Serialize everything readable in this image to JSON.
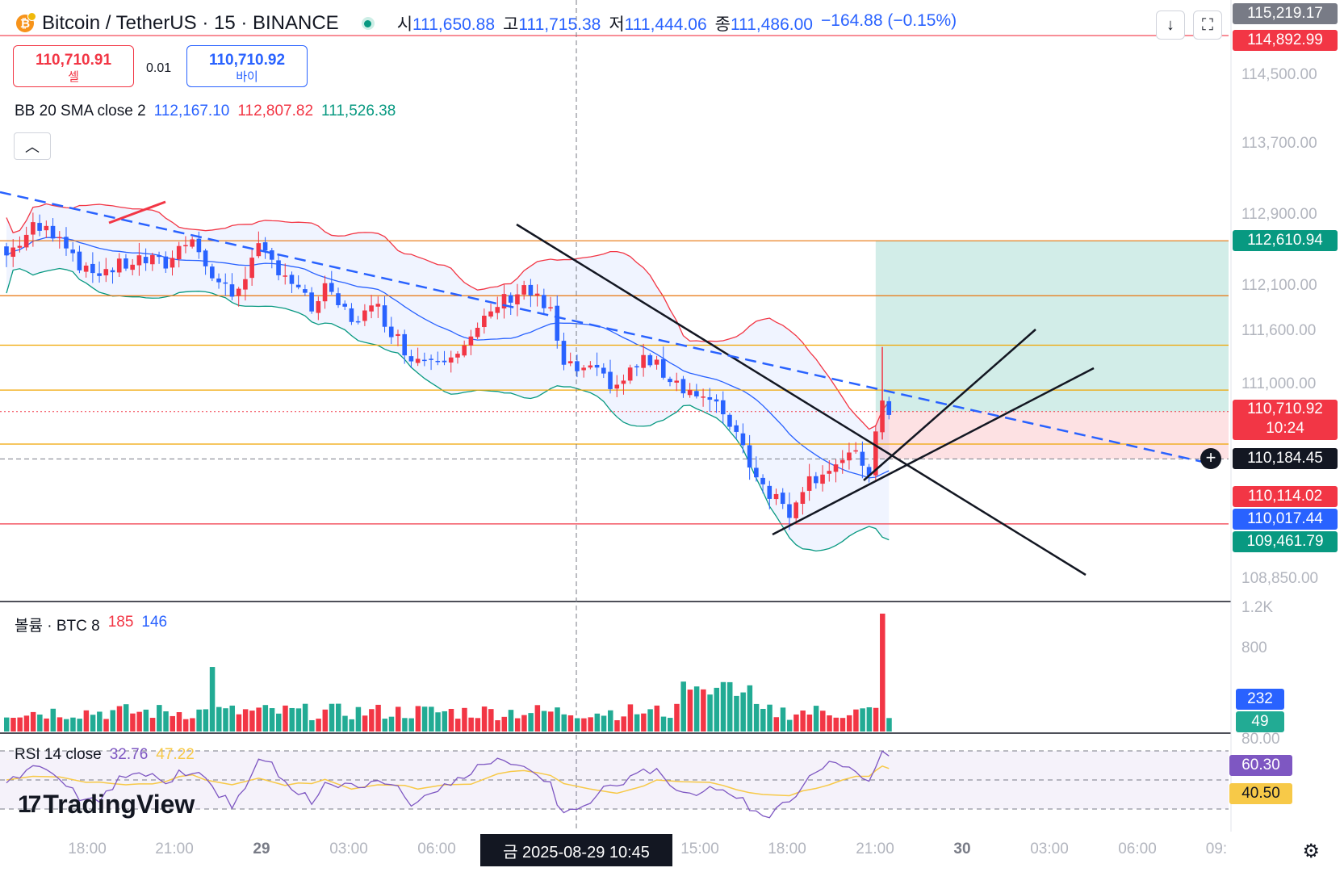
{
  "header": {
    "symbol": "Bitcoin / TetherUS · 15 · BINANCE",
    "ohlc": [
      {
        "k": "시",
        "v": "111,650.88"
      },
      {
        "k": "고",
        "v": "111,715.38"
      },
      {
        "k": "저",
        "v": "111,444.06"
      },
      {
        "k": "종",
        "v": "111,486.00"
      },
      {
        "k": "",
        "v": "−164.88 (−0.15%)"
      }
    ],
    "sell_price": "110,710.91",
    "sell_label": "셀",
    "buy_price": "110,710.92",
    "buy_label": "바이",
    "spread": "0.01"
  },
  "legends": {
    "bb": {
      "name": "BB 20 SMA close 2",
      "v1": "112,167.10",
      "v2": "112,807.82",
      "v3": "111,526.38"
    },
    "volume": {
      "name": "볼륨 · BTC 8",
      "v1": "185",
      "v2": "146"
    },
    "rsi": {
      "name": "RSI 14 close",
      "v1": "32.76",
      "v2": "47.22"
    }
  },
  "toolbar": {
    "download_icon": "download-icon",
    "fullscreen_icon": "fullscreen-icon",
    "collapse_icon": "chevron-up-icon"
  },
  "branding": {
    "text": "TradingView"
  },
  "crosshair_time": "금 2025-08-29   10:45",
  "price_axis_labels": [
    "115,219.17",
    "114,500.00",
    "113,700.00",
    "112,900.00",
    "112,100.00",
    "111,600.00",
    "111,000.00",
    "108,850.00"
  ],
  "price_tags": [
    {
      "text": "115,219.17",
      "color": "#787b86"
    },
    {
      "text": "114,892.99",
      "color": "#f23645"
    },
    {
      "text": "112,610.94",
      "color": "#089981"
    },
    {
      "text": "110,710.92\n10:24",
      "color": "#f23645"
    },
    {
      "text": "110,184.45",
      "color": "#131722"
    },
    {
      "text": "110,114.02",
      "color": "#f23645"
    },
    {
      "text": "110,017.44",
      "color": "#2962ff"
    },
    {
      "text": "109,461.79",
      "color": "#089981"
    }
  ],
  "volume_axis_labels": [
    "1.2K",
    "800"
  ],
  "volume_tags": [
    {
      "text": "232",
      "color": "#2962ff"
    },
    {
      "text": "49",
      "color": "#22ab94"
    }
  ],
  "rsi_axis_labels": [
    "80.00"
  ],
  "rsi_tags": [
    {
      "text": "60.30",
      "color": "#7e57c2"
    },
    {
      "text": "40.50",
      "color": "#f7c948"
    }
  ],
  "time_labels": [
    "18:00",
    "21:00",
    "29",
    "03:00",
    "06:00",
    "15:00",
    "18:00",
    "21:00",
    "30",
    "03:00",
    "06:00",
    "09:"
  ],
  "colors": {
    "up": "#089981",
    "down": "#f23645",
    "bb_basis": "#2962ff",
    "bb_upper": "#f23645",
    "bb_lower": "#089981",
    "rsi": "#7e57c2",
    "rsi_ma": "#f7c948"
  },
  "chart_data": {
    "type": "candlestick",
    "title": "Bitcoin / TetherUS · 15 · BINANCE",
    "interval": "15m",
    "price_range": [
      108700,
      115300
    ],
    "candle_count": 134,
    "close_path": [
      [
        0,
        112450
      ],
      [
        4,
        112750
      ],
      [
        8,
        112700
      ],
      [
        12,
        112250
      ],
      [
        16,
        112300
      ],
      [
        20,
        112400
      ],
      [
        24,
        112350
      ],
      [
        28,
        112700
      ],
      [
        30,
        112300
      ],
      [
        34,
        112000
      ],
      [
        38,
        112500
      ],
      [
        42,
        112250
      ],
      [
        46,
        111850
      ],
      [
        48,
        112050
      ],
      [
        52,
        111750
      ],
      [
        56,
        111850
      ],
      [
        60,
        111400
      ],
      [
        62,
        111300
      ],
      [
        66,
        111350
      ],
      [
        70,
        111500
      ],
      [
        74,
        111900
      ],
      [
        78,
        112100
      ],
      [
        82,
        111800
      ],
      [
        84,
        111200
      ],
      [
        88,
        111150
      ],
      [
        92,
        111000
      ],
      [
        96,
        111300
      ],
      [
        100,
        111100
      ],
      [
        104,
        110900
      ],
      [
        108,
        110700
      ],
      [
        110,
        110500
      ],
      [
        112,
        110150
      ],
      [
        114,
        109900
      ],
      [
        116,
        109750
      ],
      [
        118,
        109600
      ],
      [
        120,
        109900
      ],
      [
        124,
        110100
      ],
      [
        128,
        110200
      ],
      [
        130,
        110050
      ],
      [
        131,
        110450
      ],
      [
        132,
        110750
      ],
      [
        133,
        110700
      ]
    ],
    "horizontal_levels": [
      114892.99,
      112610.94,
      112000,
      111450,
      110950,
      110350,
      109461.79
    ],
    "position": {
      "entry": 110710.92,
      "target": 112610.94,
      "stop": 110184.45
    },
    "volume": {
      "ma_label_values": [
        185,
        146
      ],
      "last": [
        232,
        49
      ],
      "peak_label": "1.2K"
    },
    "rsi": {
      "value": 32.76,
      "ma": 47.22,
      "band": [
        40.5,
        60.3
      ]
    }
  }
}
